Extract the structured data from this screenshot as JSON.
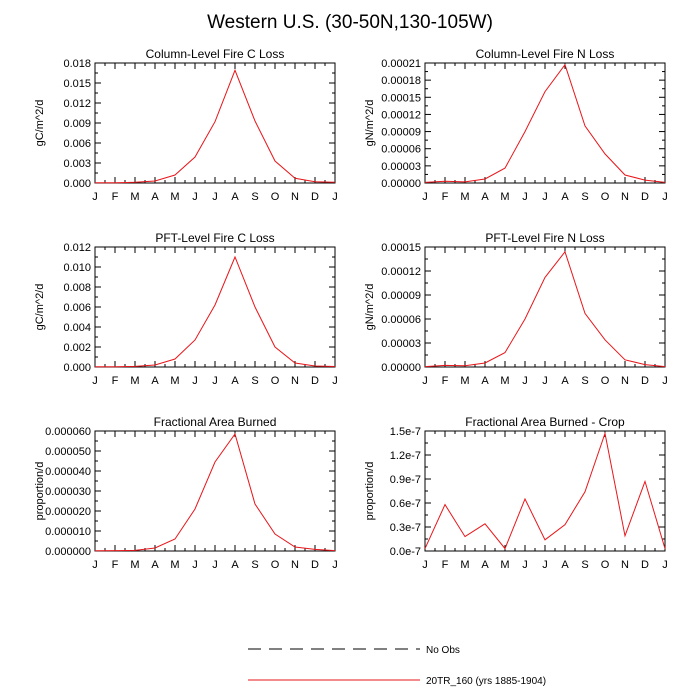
{
  "title": "Western U.S. (30-50N,130-105W)",
  "colors": {
    "model": "#e8161a",
    "obs": "#000000",
    "axis": "#000000"
  },
  "legend": [
    {
      "label": "No Obs",
      "style": "dashed",
      "color": "#000000"
    },
    {
      "label": "20TR_160 (yrs 1885-1904)",
      "style": "solid",
      "color": "#e8161a"
    }
  ],
  "chart_data": [
    {
      "type": "line",
      "title": "Column-Level Fire C Loss",
      "ylabel": "gC/m^2/d",
      "xlabel": "",
      "categories": [
        "J",
        "F",
        "M",
        "A",
        "M",
        "J",
        "J",
        "A",
        "S",
        "O",
        "N",
        "D",
        "J"
      ],
      "ylim": [
        0,
        0.018
      ],
      "yticks": [
        "0.000",
        "0.003",
        "0.006",
        "0.009",
        "0.012",
        "0.015",
        "0.018"
      ],
      "series": [
        {
          "name": "20TR_160 (yrs 1885-1904)",
          "values": [
            5e-05,
            5e-05,
            0.0001,
            0.0003,
            0.0012,
            0.0039,
            0.0092,
            0.0169,
            0.0093,
            0.0033,
            0.0007,
            0.0002,
            0.0001
          ]
        }
      ]
    },
    {
      "type": "line",
      "title": "Column-Level Fire N Loss",
      "ylabel": "gN/m^2/d",
      "xlabel": "",
      "categories": [
        "J",
        "F",
        "M",
        "A",
        "M",
        "J",
        "J",
        "A",
        "S",
        "O",
        "N",
        "D",
        "J"
      ],
      "ylim": [
        0,
        0.00021
      ],
      "yticks": [
        "0.00000",
        "0.00003",
        "0.00006",
        "0.00009",
        "0.00012",
        "0.00015",
        "0.00018",
        "0.00021"
      ],
      "series": [
        {
          "name": "20TR_160 (yrs 1885-1904)",
          "values": [
            1e-06,
            3e-06,
            2e-06,
            7e-06,
            2.6e-05,
            9e-05,
            0.00016,
            0.000207,
            0.0001,
            5.1e-05,
            1.4e-05,
            5e-06,
            1e-06
          ]
        }
      ]
    },
    {
      "type": "line",
      "title": "PFT-Level Fire C Loss",
      "ylabel": "gC/m^2/d",
      "xlabel": "",
      "categories": [
        "J",
        "F",
        "M",
        "A",
        "M",
        "J",
        "J",
        "A",
        "S",
        "O",
        "N",
        "D",
        "J"
      ],
      "ylim": [
        0,
        0.012
      ],
      "yticks": [
        "0.000",
        "0.002",
        "0.004",
        "0.006",
        "0.008",
        "0.010",
        "0.012"
      ],
      "series": [
        {
          "name": "20TR_160 (yrs 1885-1904)",
          "values": [
            3e-05,
            3e-05,
            6e-05,
            0.0002,
            0.0008,
            0.0027,
            0.0062,
            0.011,
            0.006,
            0.002,
            0.0004,
            0.0001,
            5e-05
          ]
        }
      ]
    },
    {
      "type": "line",
      "title": "PFT-Level Fire N Loss",
      "ylabel": "gN/m^2/d",
      "xlabel": "",
      "categories": [
        "J",
        "F",
        "M",
        "A",
        "M",
        "J",
        "J",
        "A",
        "S",
        "O",
        "N",
        "D",
        "J"
      ],
      "ylim": [
        0,
        0.00015
      ],
      "yticks": [
        "0.00000",
        "0.00003",
        "0.00006",
        "0.00009",
        "0.00012",
        "0.00015"
      ],
      "series": [
        {
          "name": "20TR_160 (yrs 1885-1904)",
          "values": [
            5e-07,
            2e-06,
            1.5e-06,
            5e-06,
            1.8e-05,
            6e-05,
            0.000112,
            0.000144,
            6.7e-05,
            3.4e-05,
            9e-06,
            3e-06,
            5e-07
          ]
        }
      ]
    },
    {
      "type": "line",
      "title": "Fractional Area Burned",
      "ylabel": "proportion/d",
      "xlabel": "",
      "categories": [
        "J",
        "F",
        "M",
        "A",
        "M",
        "J",
        "J",
        "A",
        "S",
        "O",
        "N",
        "D",
        "J"
      ],
      "ylim": [
        0,
        6e-05
      ],
      "yticks": [
        "0.000000",
        "0.000010",
        "0.000020",
        "0.000030",
        "0.000040",
        "0.000050",
        "0.000060"
      ],
      "series": [
        {
          "name": "20TR_160 (yrs 1885-1904)",
          "values": [
            1e-07,
            2e-07,
            3e-07,
            1.5e-06,
            6e-06,
            2.1e-05,
            4.45e-05,
            5.85e-05,
            2.35e-05,
            8.5e-06,
            2e-06,
            8e-07,
            2e-07
          ]
        }
      ]
    },
    {
      "type": "line",
      "title": "Fractional Area Burned - Crop",
      "ylabel": "proportion/d",
      "xlabel": "",
      "categories": [
        "J",
        "F",
        "M",
        "A",
        "M",
        "J",
        "J",
        "A",
        "S",
        "O",
        "N",
        "D",
        "J"
      ],
      "ylim": [
        0,
        1.5e-07
      ],
      "yticks": [
        "0.0e-7",
        "0.3e-7",
        "0.6e-7",
        "0.9e-7",
        "1.2e-7",
        "1.5e-7"
      ],
      "series": [
        {
          "name": "20TR_160 (yrs 1885-1904)",
          "values": [
            3e-09,
            5.8e-08,
            1.8e-08,
            3.4e-08,
            3e-09,
            6.5e-08,
            1.4e-08,
            3.3e-08,
            7.4e-08,
            1.47e-07,
            1.9e-08,
            8.7e-08,
            3e-09
          ]
        }
      ]
    }
  ]
}
